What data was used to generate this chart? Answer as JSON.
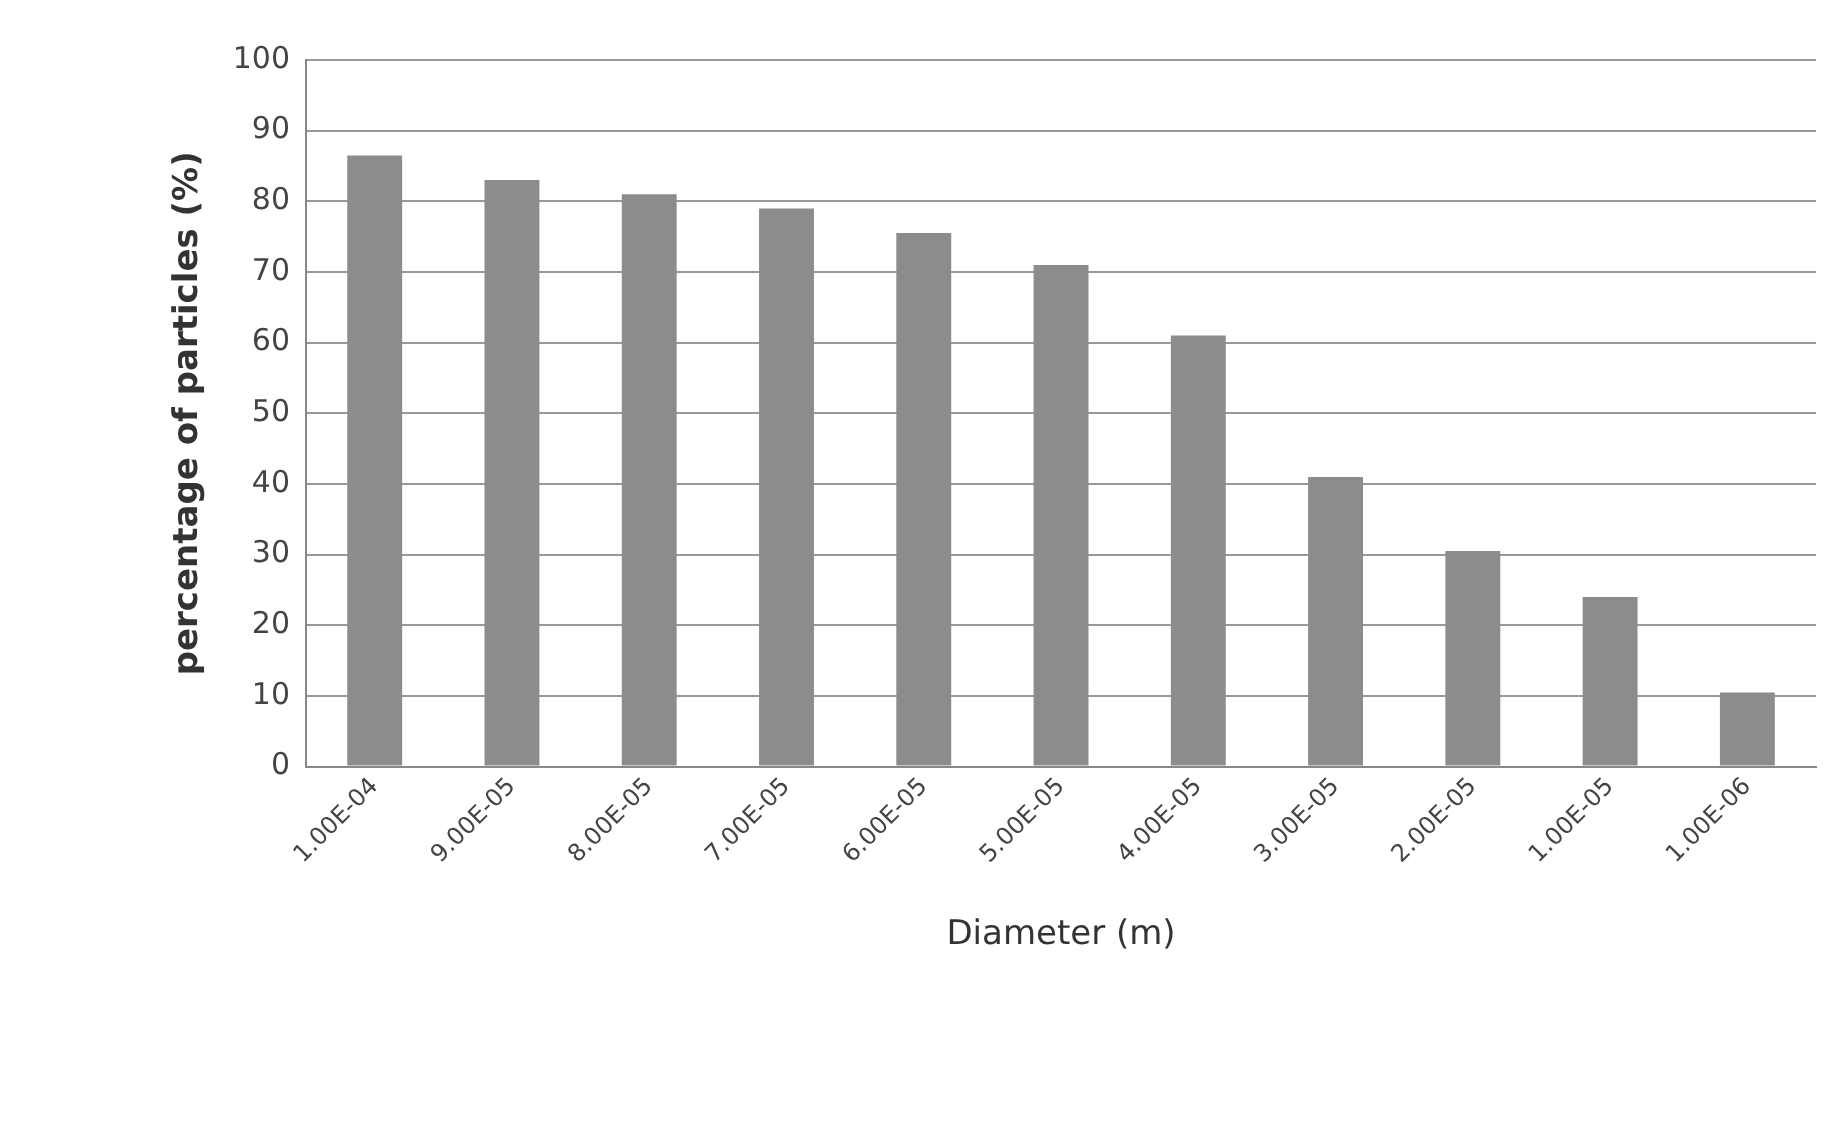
{
  "chart_data": {
    "type": "bar",
    "xlabel": "Diameter (m)",
    "ylabel": "percentage of particles (%)",
    "categories": [
      "1.00E-04",
      "9.00E-05",
      "8.00E-05",
      "7.00E-05",
      "6.00E-05",
      "5.00E-05",
      "4.00E-05",
      "3.00E-05",
      "2.00E-05",
      "1.00E-05",
      "1.00E-06"
    ],
    "values": [
      86.5,
      83,
      81,
      79,
      75.5,
      71,
      61,
      41,
      30.5,
      24,
      10.5
    ],
    "color": "#8c8c8c",
    "ylim": [
      0,
      100
    ],
    "yticks": [
      0,
      10,
      20,
      30,
      40,
      50,
      60,
      70,
      80,
      90,
      100
    ],
    "grid": "y",
    "legend": false
  }
}
